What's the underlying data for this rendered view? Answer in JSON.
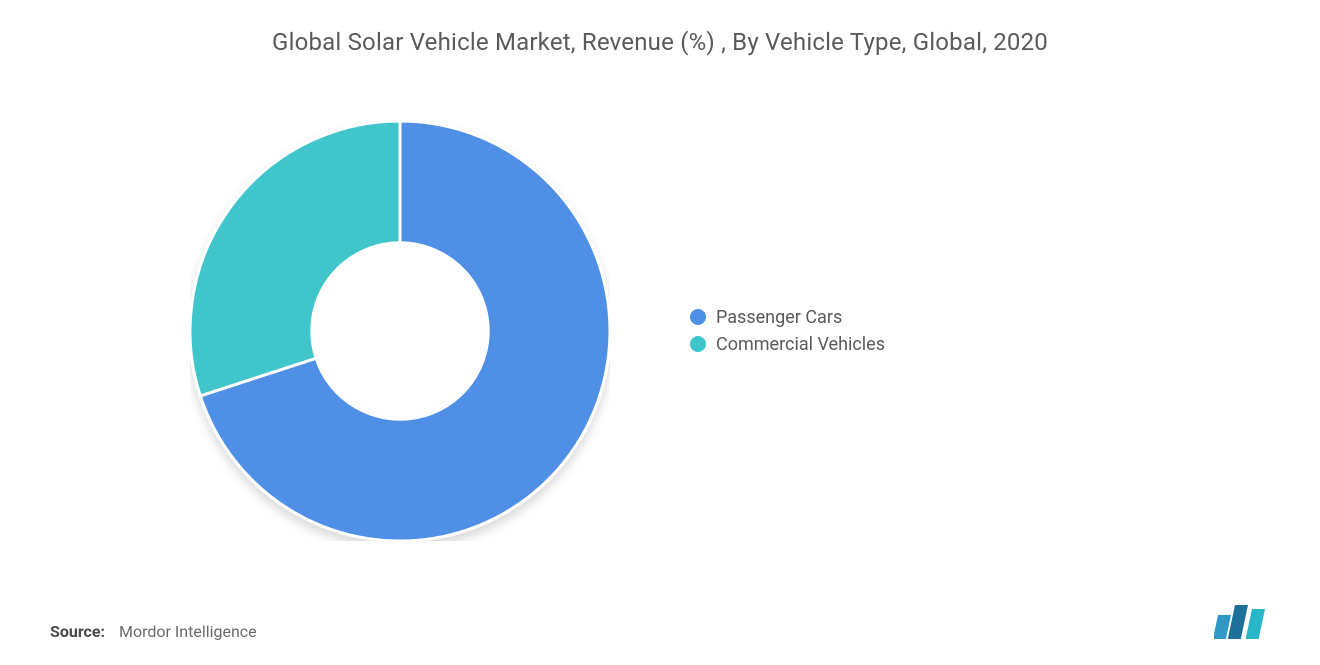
{
  "title": "Global Solar Vehicle Market, Revenue (%) , By Vehicle Type, Global, 2020",
  "chart": {
    "type": "donut",
    "inner_radius_ratio": 0.42,
    "outer_radius": 210,
    "background_color": "#ffffff",
    "slice_stroke": "#ffffff",
    "slice_stroke_width": 3,
    "start_angle_deg": 0,
    "shadow": {
      "dx": 0,
      "dy": 6,
      "blur": 10,
      "color": "rgba(0,0,0,0.15)"
    },
    "series": [
      {
        "label": "Passenger Cars",
        "value": 70,
        "color": "#4f8fe6"
      },
      {
        "label": "Commercial Vehicles",
        "value": 30,
        "color": "#3fc5cb"
      }
    ]
  },
  "legend": {
    "position": "right",
    "fontsize": 18,
    "text_color": "#5a5a5a",
    "swatch_shape": "circle",
    "swatch_size": 16
  },
  "source": {
    "label": "Source:",
    "text": "Mordor Intelligence"
  },
  "logo": {
    "name": "mordor-intelligence-logo",
    "bar_colors": [
      "#2f99c5",
      "#1e6f9a",
      "#29b6c8"
    ]
  },
  "typography": {
    "title_fontsize": 24,
    "title_color": "#5a5a5a",
    "source_fontsize": 16,
    "source_color": "#6a6a6a"
  }
}
